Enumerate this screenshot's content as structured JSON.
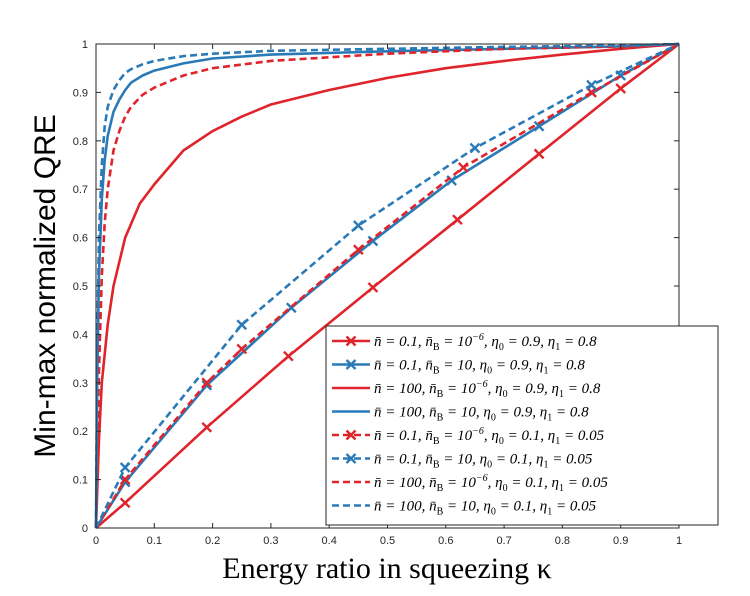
{
  "chart_data": {
    "type": "line",
    "title": "",
    "xlabel": "Energy ratio in squeezing κ",
    "ylabel": "Min-max normalized QRE",
    "xlim": [
      0,
      1
    ],
    "ylim": [
      0,
      1
    ],
    "xticks": [
      "0",
      "0.1",
      "0.2",
      "0.3",
      "0.4",
      "0.5",
      "0.6",
      "0.7",
      "0.8",
      "0.9",
      "1"
    ],
    "yticks": [
      "0",
      "0.1",
      "0.2",
      "0.3",
      "0.4",
      "0.5",
      "0.6",
      "0.7",
      "0.8",
      "0.9",
      "1"
    ],
    "legend_position": "bottom-right",
    "colors": {
      "red": "#e0242b",
      "blue": "#2a7ab8"
    },
    "series": [
      {
        "name": "n̄ = 0.1, n̄B = 10^-6, η0 = 0.9, η1 = 0.8",
        "color": "red",
        "dash": "solid",
        "marker": "x",
        "x": [
          0,
          0.05,
          0.19,
          0.33,
          0.475,
          0.62,
          0.76,
          0.9,
          1
        ],
        "y": [
          0,
          0.052,
          0.208,
          0.355,
          0.497,
          0.637,
          0.773,
          0.908,
          1
        ]
      },
      {
        "name": "n̄ = 0.1, n̄B = 10, η0 = 0.9, η1 = 0.8",
        "color": "blue",
        "dash": "solid",
        "marker": "x",
        "x": [
          0,
          0.05,
          0.19,
          0.335,
          0.475,
          0.61,
          0.76,
          0.9,
          1
        ],
        "y": [
          0,
          0.095,
          0.295,
          0.455,
          0.593,
          0.718,
          0.83,
          0.935,
          1
        ]
      },
      {
        "name": "n̄ = 100, n̄B = 10^-6, η0 = 0.9, η1 = 0.8",
        "color": "red",
        "dash": "solid",
        "marker": "none",
        "x": [
          0,
          0.005,
          0.01,
          0.02,
          0.03,
          0.05,
          0.075,
          0.1,
          0.15,
          0.2,
          0.25,
          0.3,
          0.4,
          0.5,
          0.6,
          0.7,
          0.8,
          0.9,
          1
        ],
        "y": [
          0,
          0.18,
          0.3,
          0.42,
          0.5,
          0.6,
          0.67,
          0.71,
          0.78,
          0.82,
          0.85,
          0.875,
          0.905,
          0.93,
          0.95,
          0.965,
          0.978,
          0.99,
          1
        ]
      },
      {
        "name": "n̄ = 100, n̄B = 10, η0 = 0.9, η1 = 0.8",
        "color": "blue",
        "dash": "solid",
        "marker": "none",
        "x": [
          0,
          0.002,
          0.005,
          0.01,
          0.015,
          0.02,
          0.03,
          0.04,
          0.05,
          0.06,
          0.08,
          0.1,
          0.15,
          0.2,
          0.3,
          0.5,
          0.7,
          0.9,
          1
        ],
        "y": [
          0,
          0.3,
          0.52,
          0.68,
          0.76,
          0.81,
          0.86,
          0.885,
          0.905,
          0.92,
          0.935,
          0.945,
          0.96,
          0.97,
          0.978,
          0.985,
          0.99,
          0.995,
          1
        ]
      },
      {
        "name": "n̄ = 0.1, n̄B = 10^-6, η0 = 0.1, η1 = 0.05",
        "color": "red",
        "dash": "dashed",
        "marker": "x",
        "x": [
          0,
          0.05,
          0.19,
          0.25,
          0.45,
          0.63,
          0.85,
          1
        ],
        "y": [
          0,
          0.1,
          0.3,
          0.37,
          0.575,
          0.745,
          0.9,
          1
        ]
      },
      {
        "name": "n̄ = 0.1, n̄B = 10, η0 = 0.1, η1 = 0.05",
        "color": "blue",
        "dash": "dashed",
        "marker": "x",
        "x": [
          0,
          0.05,
          0.25,
          0.45,
          0.65,
          0.85,
          1
        ],
        "y": [
          0,
          0.125,
          0.42,
          0.625,
          0.785,
          0.915,
          1
        ]
      },
      {
        "name": "n̄ = 100, n̄B = 10^-6, η0 = 0.1, η1 = 0.05",
        "color": "red",
        "dash": "dashed",
        "marker": "none",
        "x": [
          0,
          0.002,
          0.005,
          0.01,
          0.015,
          0.02,
          0.03,
          0.04,
          0.05,
          0.06,
          0.08,
          0.1,
          0.15,
          0.2,
          0.3,
          0.5,
          0.7,
          0.9,
          1
        ],
        "y": [
          0,
          0.15,
          0.32,
          0.52,
          0.63,
          0.7,
          0.78,
          0.82,
          0.85,
          0.87,
          0.895,
          0.91,
          0.935,
          0.95,
          0.965,
          0.98,
          0.99,
          0.995,
          1
        ]
      },
      {
        "name": "n̄ = 100, n̄B = 10, η0 = 0.1, η1 = 0.05",
        "color": "blue",
        "dash": "dashed",
        "marker": "none",
        "x": [
          0,
          0.002,
          0.005,
          0.01,
          0.015,
          0.02,
          0.03,
          0.04,
          0.05,
          0.06,
          0.08,
          0.1,
          0.15,
          0.2,
          0.3,
          0.5,
          0.7,
          0.9,
          1
        ],
        "y": [
          0,
          0.35,
          0.6,
          0.75,
          0.83,
          0.87,
          0.905,
          0.925,
          0.94,
          0.948,
          0.958,
          0.965,
          0.975,
          0.98,
          0.986,
          0.99,
          0.994,
          0.997,
          1
        ]
      }
    ],
    "legend": [
      {
        "label_parts": [
          "n̄ = 0.1, n̄",
          "B",
          " = 10",
          "−6",
          ", η",
          "0",
          " = 0.9, η",
          "1",
          " = 0.8"
        ]
      },
      {
        "label_parts": [
          "n̄ = 0.1, n̄",
          "B",
          " = 10, η",
          "0",
          " = 0.9, η",
          "1",
          " = 0.8"
        ]
      },
      {
        "label_parts": [
          "n̄ = 100, n̄",
          "B",
          " = 10",
          "−6",
          ", η",
          "0",
          " = 0.9, η",
          "1",
          " = 0.8"
        ]
      },
      {
        "label_parts": [
          "n̄ = 100, n̄",
          "B",
          " = 10, η",
          "0",
          " = 0.9, η",
          "1",
          " = 0.8"
        ]
      },
      {
        "label_parts": [
          "n̄ = 0.1, n̄",
          "B",
          " = 10",
          "−6",
          ", η",
          "0",
          " = 0.1, η",
          "1",
          " = 0.05"
        ]
      },
      {
        "label_parts": [
          "n̄ = 0.1, n̄",
          "B",
          " = 10, η",
          "0",
          " = 0.1, η",
          "1",
          " = 0.05"
        ]
      },
      {
        "label_parts": [
          "n̄ = 100, n̄",
          "B",
          " = 10",
          "−6",
          ", η",
          "0",
          " = 0.1, η",
          "1",
          " = 0.05"
        ]
      },
      {
        "label_parts": [
          "n̄ = 100, n̄",
          "B",
          " = 10, η",
          "0",
          " = 0.1, η",
          "1",
          " = 0.05"
        ]
      }
    ]
  }
}
